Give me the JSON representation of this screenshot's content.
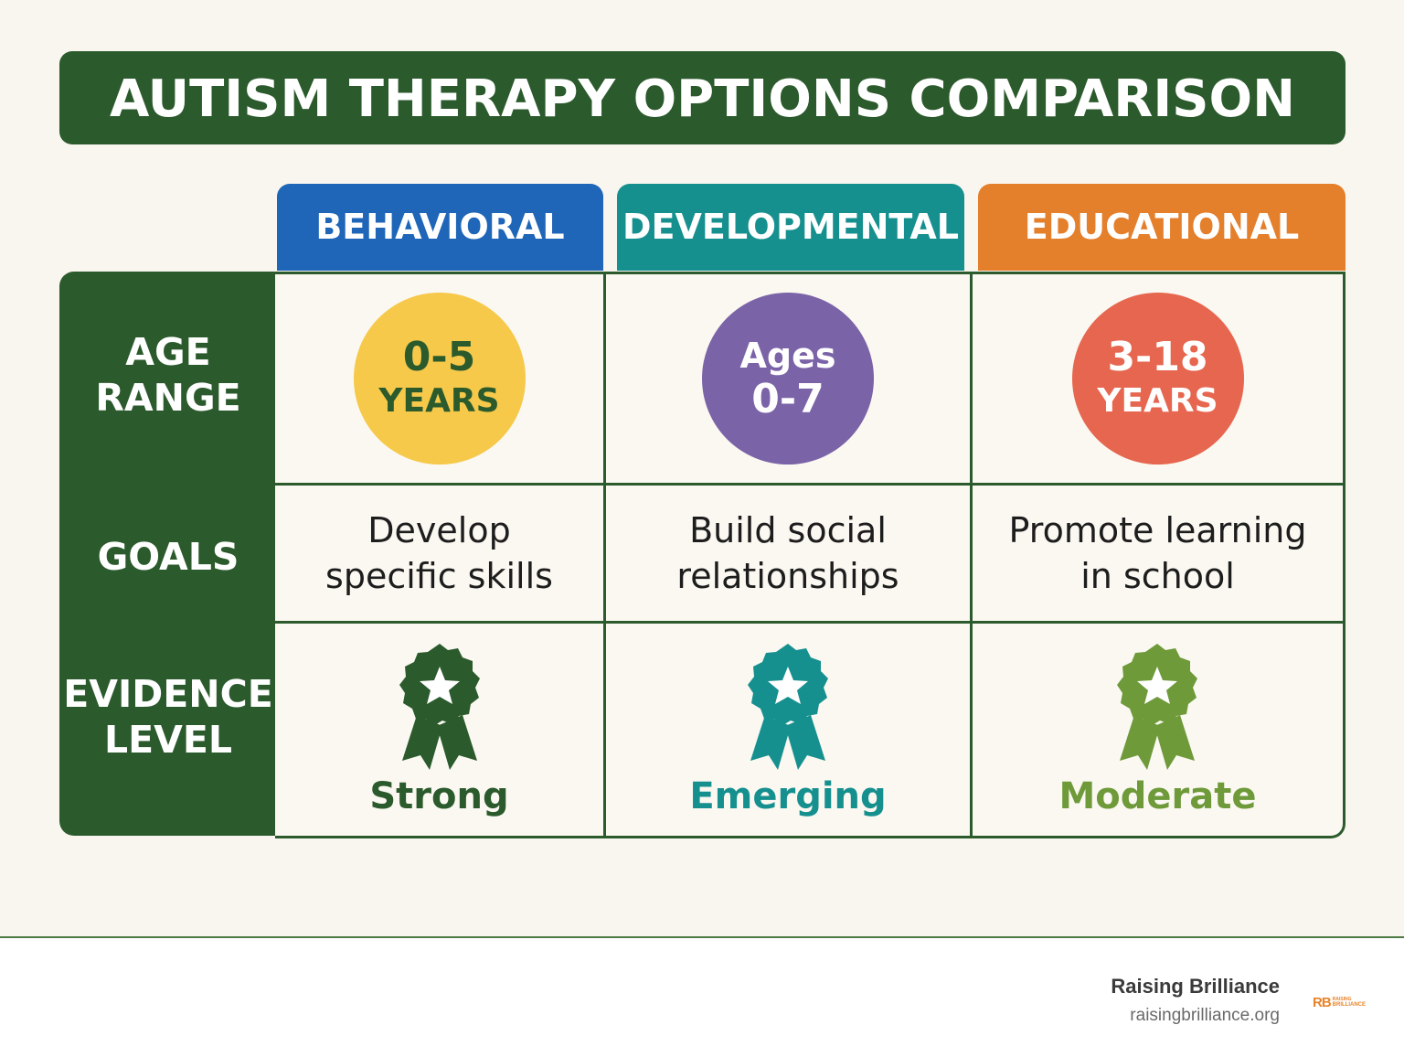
{
  "title": "AUTISM THERAPY OPTIONS COMPARISON",
  "colors": {
    "dark_green": "#2b5a2c",
    "behavioral": "#1f66b8",
    "developmental": "#16908f",
    "educational": "#e47f2c",
    "circle_yellow": "#f6c94a",
    "circle_purple": "#7b63a8",
    "circle_red": "#e6664f",
    "badge_strong": "#2b5a2c",
    "badge_emerging": "#16908f",
    "badge_moderate": "#6e9a3a"
  },
  "columns": [
    {
      "label": "BEHAVIORAL"
    },
    {
      "label": "DEVELOPMENTAL"
    },
    {
      "label": "EDUCATIONAL"
    }
  ],
  "rows": {
    "age_range": {
      "label_line1": "AGE",
      "label_line2": "RANGE"
    },
    "goals": {
      "label": "GOALS"
    },
    "evidence": {
      "label_line1": "EVIDENCE",
      "label_line2": "LEVEL"
    }
  },
  "age_ranges": [
    {
      "line1": "0-5",
      "line2": "YEARS"
    },
    {
      "line1": "Ages",
      "line2": "0-7"
    },
    {
      "line1": "3-18",
      "line2": "YEARS"
    }
  ],
  "goals": [
    {
      "line1": "Develop",
      "line2": "specific skills"
    },
    {
      "line1": "Build social",
      "line2": "relationships"
    },
    {
      "line1": "Promote learning",
      "line2": "in school"
    }
  ],
  "evidence_levels": [
    {
      "label": "Strong",
      "icon": "award-ribbon-icon"
    },
    {
      "label": "Emerging",
      "icon": "award-ribbon-icon"
    },
    {
      "label": "Moderate",
      "icon": "award-ribbon-icon"
    }
  ],
  "footer": {
    "brand_name": "Raising Brilliance",
    "brand_url": "raisingbrilliance.org",
    "logo_mark": "RB",
    "logo_line1": "RAISING",
    "logo_line2": "BRILLIANCE"
  }
}
